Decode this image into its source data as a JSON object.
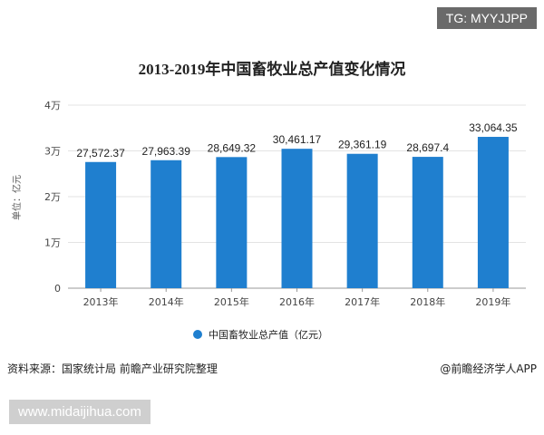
{
  "overlay": {
    "tag": "TG: MYYJJPP",
    "website": "www.midaijihua.com"
  },
  "footer": {
    "source": "资料来源：国家统计局 前瞻产业研究院整理",
    "brand": "@前瞻经济学人APP"
  },
  "colors": {
    "bar": "#1f7fcf",
    "grid": "#e3e3e3",
    "axis": "#999999"
  },
  "chart_data": {
    "type": "bar",
    "title": "2013-2019年中国畜牧业总产值变化情况",
    "ylabel": "单位：亿元",
    "ylim": [
      0,
      40000
    ],
    "yticks": [
      {
        "value": 0,
        "label": "0"
      },
      {
        "value": 10000,
        "label": "1万"
      },
      {
        "value": 20000,
        "label": "2万"
      },
      {
        "value": 30000,
        "label": "3万"
      },
      {
        "value": 40000,
        "label": "4万"
      }
    ],
    "categories": [
      "2013年",
      "2014年",
      "2015年",
      "2016年",
      "2017年",
      "2018年",
      "2019年"
    ],
    "series": [
      {
        "name": "中国畜牧业总产值（亿元）",
        "values": [
          27572.37,
          27963.39,
          28649.32,
          30461.17,
          29361.19,
          28697.4,
          33064.35
        ],
        "labels": [
          "27,572.37",
          "27,963.39",
          "28,649.32",
          "30,461.17",
          "29,361.19",
          "28,697.4",
          "33,064.35"
        ]
      }
    ],
    "grid": true,
    "legend": "bottom-center"
  }
}
